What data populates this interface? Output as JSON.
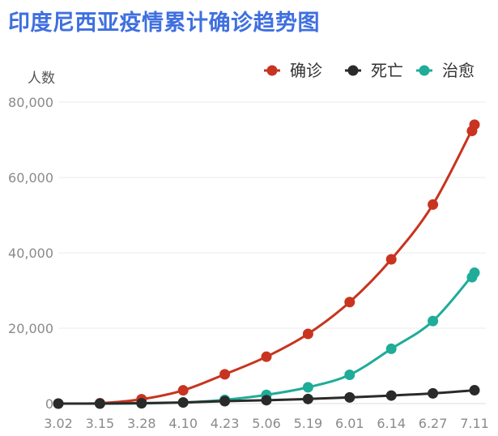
{
  "chart_data": {
    "type": "line",
    "title": "印度尼西亚疫情累计确诊趋势图",
    "ylabel": "人数",
    "xlabel": "",
    "categories": [
      "3.02",
      "3.15",
      "3.28",
      "4.10",
      "4.23",
      "5.06",
      "5.19",
      "6.01",
      "6.14",
      "6.27",
      "7.11"
    ],
    "yticks": [
      "0",
      "20,000",
      "40,000",
      "60,000",
      "80,000"
    ],
    "ylim": [
      0,
      80000
    ],
    "grid": true,
    "legend_position": "top-right",
    "series": [
      {
        "name": "确诊",
        "color": "#c8341f",
        "values": [
          2,
          117,
          1155,
          3512,
          7775,
          12438,
          18496,
          26940,
          38277,
          52812,
          74018
        ],
        "extra_points": [
          {
            "x_index": 10,
            "dx": -0.06,
            "value": 72347
          }
        ]
      },
      {
        "name": "死亡",
        "color": "#2a2a2a",
        "values": [
          0,
          5,
          102,
          306,
          647,
          895,
          1221,
          1641,
          2134,
          2720,
          3535
        ],
        "extra_points": []
      },
      {
        "name": "治愈",
        "color": "#1fac98",
        "values": [
          0,
          8,
          59,
          282,
          1002,
          2317,
          4324,
          7637,
          14531,
          21909,
          34719
        ],
        "extra_points": [
          {
            "x_index": 10,
            "dx": -0.06,
            "value": 33529
          }
        ]
      }
    ]
  }
}
